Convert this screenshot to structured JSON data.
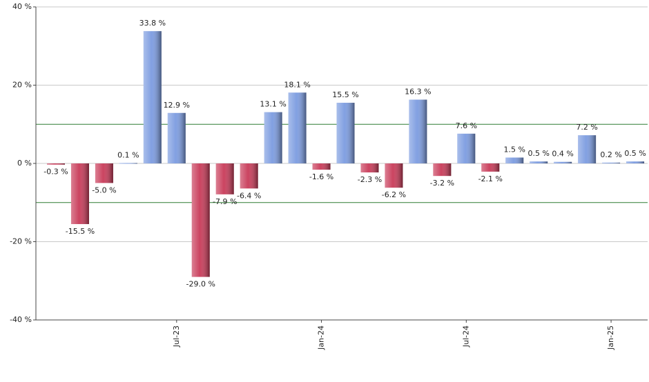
{
  "chart_data": {
    "type": "bar",
    "categories": [
      null,
      null,
      null,
      null,
      null,
      "Jul-23",
      null,
      null,
      null,
      null,
      null,
      "Jan-24",
      null,
      null,
      null,
      null,
      null,
      "Jul-24",
      null,
      null,
      null,
      null,
      null,
      "Jan-25",
      null
    ],
    "values": [
      -0.3,
      -15.5,
      -5.0,
      0.1,
      33.8,
      12.9,
      -29.0,
      -7.9,
      -6.4,
      13.1,
      18.1,
      -1.6,
      15.5,
      -2.3,
      -6.2,
      16.3,
      -3.2,
      7.6,
      -2.1,
      1.5,
      0.5,
      0.4,
      7.2,
      0.2,
      0.5
    ],
    "value_labels": [
      "-0.3 %",
      "-15.5 %",
      "-5.0 %",
      "0.1 %",
      "33.8 %",
      "12.9 %",
      "-29.0 %",
      "-7.9 %",
      "-6.4 %",
      "13.1 %",
      "18.1 %",
      "-1.6 %",
      "15.5 %",
      "-2.3 %",
      "-6.2 %",
      "16.3 %",
      "-3.2 %",
      "7.6 %",
      "-2.1 %",
      "1.5 %",
      "0.5 %",
      "0.4 %",
      "7.2 %",
      "0.2 %",
      "0.5 %"
    ],
    "positive_color": "#7b9be0",
    "negative_color": "#c83a58",
    "ylim": [
      -40,
      40
    ],
    "yticks": [
      {
        "value": -40,
        "label": "-40 %"
      },
      {
        "value": -20,
        "label": "-20 %"
      },
      {
        "value": 0,
        "label": "0 %"
      },
      {
        "value": 20,
        "label": "20 %"
      },
      {
        "value": 40,
        "label": "40 %"
      }
    ],
    "reference_lines": [
      10,
      -10
    ],
    "reference_color": "#2e7d32",
    "grid": true
  }
}
